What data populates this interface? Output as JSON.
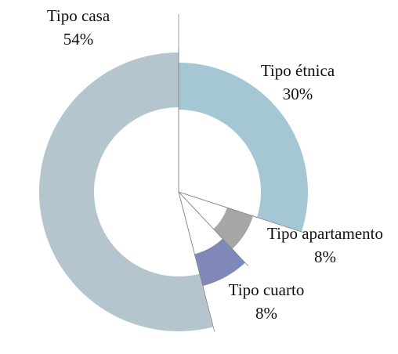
{
  "chart_data": {
    "type": "pie",
    "categories": [
      "Tipo étnica",
      "Tipo apartamento",
      "Tipo cuarto",
      "Tipo casa"
    ],
    "values": [
      30,
      8,
      8,
      54
    ],
    "value_labels": [
      "30%",
      "8%",
      "8%",
      "54%"
    ],
    "colors": [
      "#a5c7d3",
      "#a6a6a6",
      "#7f88b8",
      "#b4c5cd"
    ]
  }
}
